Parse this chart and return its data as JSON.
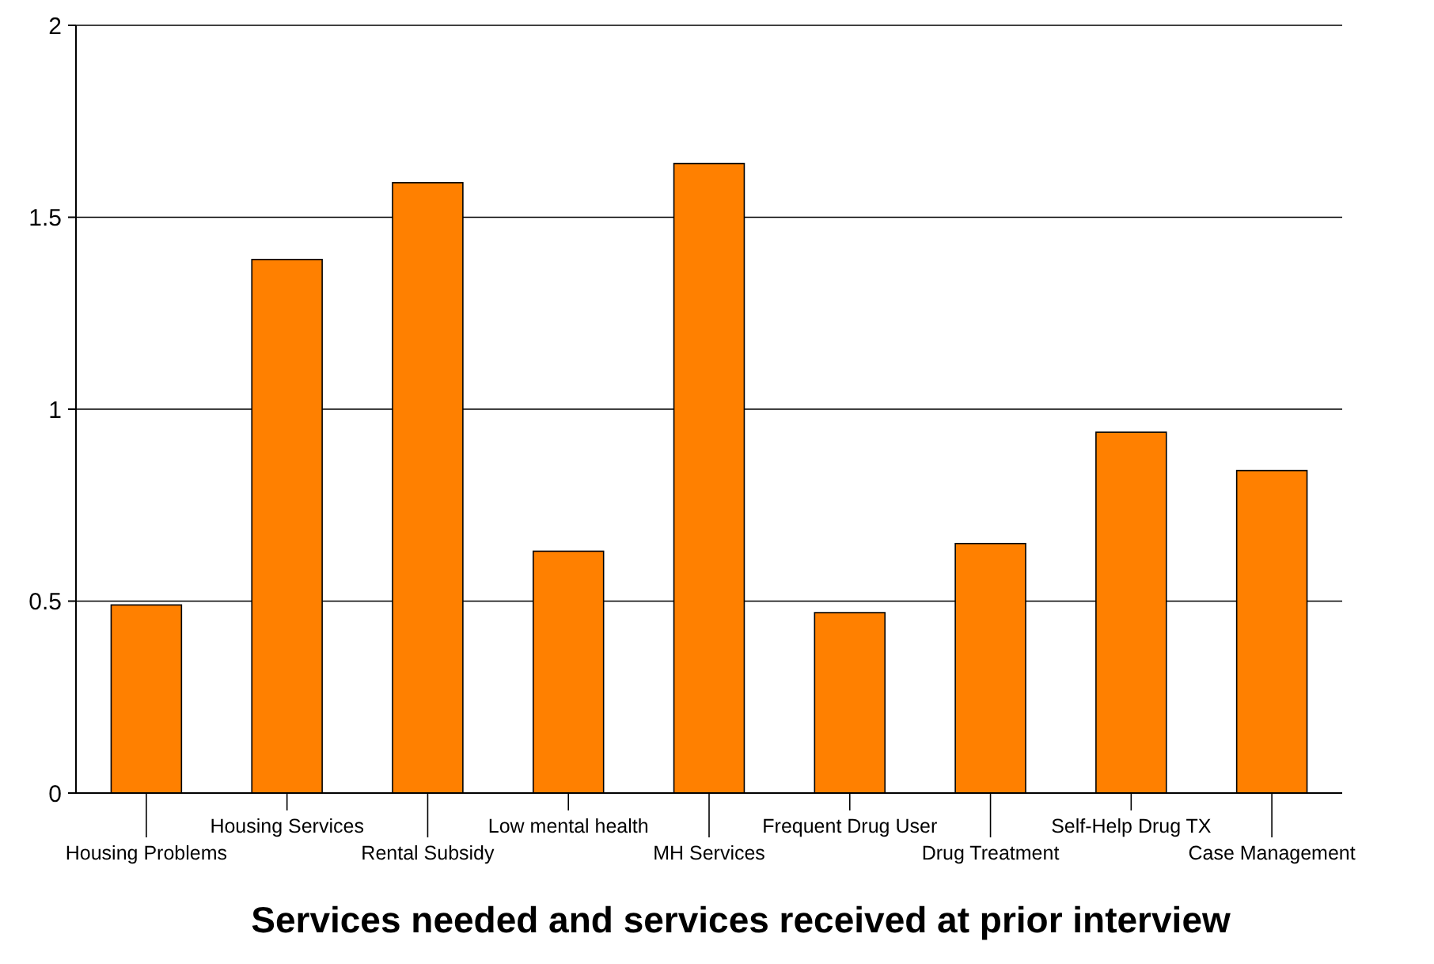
{
  "chart_data": {
    "type": "bar",
    "title": "Services needed and services received at prior interview",
    "categories": [
      "Housing Problems",
      "Housing Services",
      "Rental Subsidy",
      "Low mental health",
      "MH Services",
      "Frequent Drug User",
      "Drug Treatment",
      "Self-Help Drug TX",
      "Case Management"
    ],
    "values": [
      0.49,
      1.39,
      1.59,
      0.63,
      1.64,
      0.47,
      0.65,
      0.94,
      0.84
    ],
    "color": "#ff8000",
    "ylim": [
      0,
      2
    ],
    "yticks": [
      0,
      0.5,
      1,
      1.5,
      2
    ],
    "grid": "y"
  }
}
